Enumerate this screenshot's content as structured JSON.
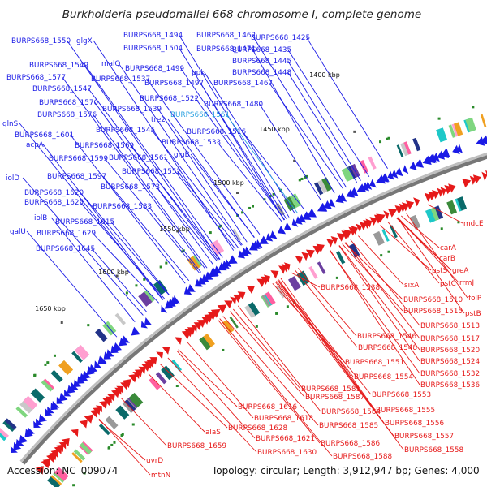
{
  "title": "Burkholderia pseudomallei 668 chromosome I, complete genome",
  "accession": "Accession: NC_009074",
  "topology": "Topology: circular; Length: 3,912,947 bp; Genes: 4,000",
  "colors": {
    "forward_strand": "#1a1ae6",
    "reverse_strand": "#e61a1a",
    "highlight": "#2aa0e0",
    "backbone": "#777777",
    "tick": "#2a8a2a"
  },
  "kbp_ticks": [
    "1400 kbp",
    "1450 kbp",
    "1500 kbp",
    "1550 kbp",
    "1600 kbp",
    "1650 kbp"
  ],
  "blue_labels": [
    "BURPS668_1550",
    "glgX",
    "BURPS668_1494",
    "BURPS668_1462",
    "BURPS668_1425",
    "malQ",
    "BURPS668_1504",
    "BURPS668_1471",
    "BURPS668_1435",
    "BURPS668_1549",
    "BURPS668_1499",
    "ppk",
    "BURPS668_1445",
    "BURPS668_1577",
    "BURPS668_1537",
    "BURPS668_1448",
    "BURPS668_1547",
    "BURPS668_1497",
    "BURPS668_1467",
    "BURPS668_1522",
    "BURPS668_1570",
    "BURPS668_1480",
    "BURPS668_1576",
    "BURPS668_1539",
    "BURPS668_1561",
    "glnS",
    "tre2",
    "BURPS668_1545",
    "BURPS668_1516",
    "BURPS668_1601",
    "acpA",
    "BURPS668_1569",
    "BURPS668_1533",
    "BURPS668_1599",
    "BURPS668_1561",
    "glgB",
    "BURPS668_1552",
    "iolD",
    "BURPS668_1597",
    "BURPS668_1573",
    "BURPS668_1620",
    "BURPS668_1625",
    "BURPS668_1583",
    "iolB",
    "BURPS668_1615",
    "galU",
    "BURPS668_1629",
    "BURPS668_1645"
  ],
  "red_labels": [
    "mdcE",
    "carA",
    "carB",
    "pstS",
    "greA",
    "pstC",
    "rrmJ",
    "BURPS668_1538",
    "sixA",
    "folP",
    "BURPS668_1510",
    "BURPS668_1515",
    "pstB",
    "BURPS668_1513",
    "BURPS668_1546",
    "BURPS668_1517",
    "BURPS668_1548",
    "BURPS668_1520",
    "BURPS668_1551",
    "BURPS668_1524",
    "BURPS668_1554",
    "BURPS668_1532",
    "BURPS668_1581",
    "BURPS668_1536",
    "BURPS668_1587",
    "BURPS668_1553",
    "BURPS668_1584",
    "BURPS668_1555",
    "BURPS668_1616",
    "BURPS668_1618",
    "BURPS668_1585",
    "BURPS668_1556",
    "BURPS668_1628",
    "alaS",
    "BURPS668_1621",
    "BURPS668_1557",
    "BURPS668_1586",
    "BURPS668_1659",
    "BURPS668_1630",
    "BURPS668_1588",
    "BURPS668_1558",
    "uvrD",
    "mtnN"
  ]
}
